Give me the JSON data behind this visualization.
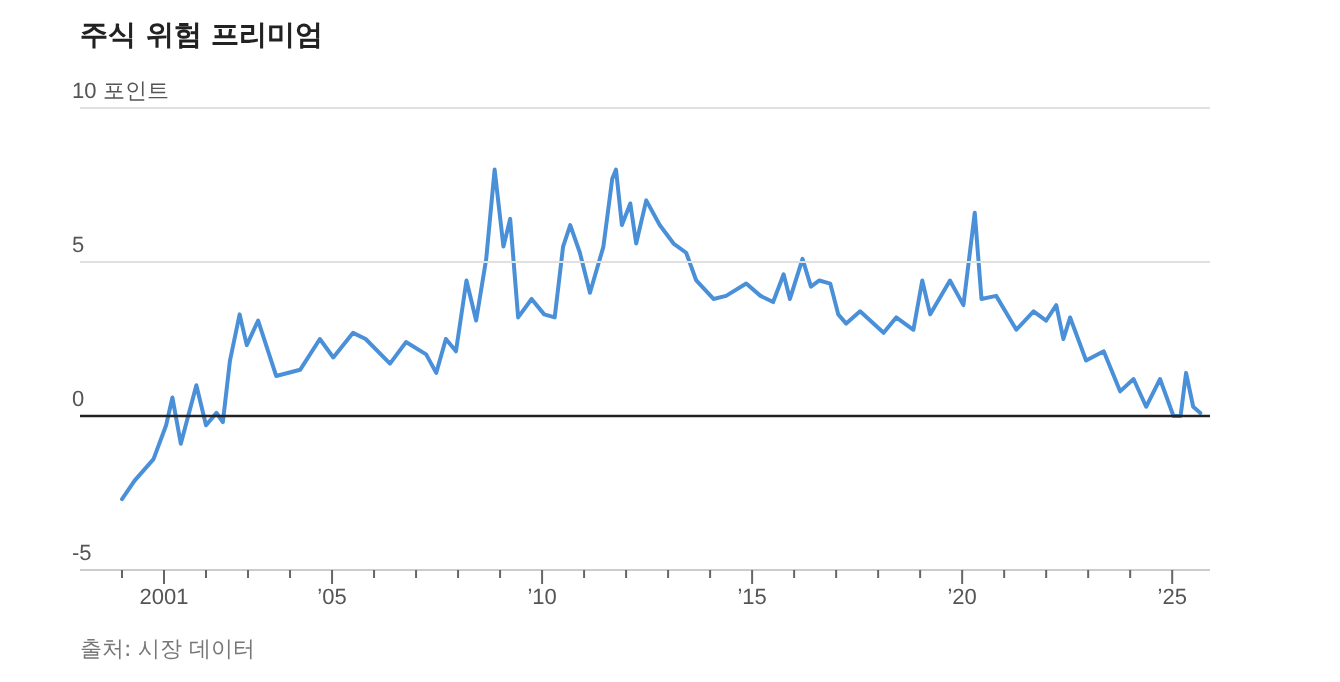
{
  "chart_data": {
    "type": "line",
    "title": "주식 위험 프리미엄",
    "annotations": [
      "출처: 시장 데이터"
    ],
    "x": [
      2000.0,
      2000.3,
      2000.75,
      2001.05,
      2001.2,
      2001.4,
      2001.77,
      2002.0,
      2002.25,
      2002.4,
      2002.57,
      2002.8,
      2002.97,
      2003.24,
      2003.67,
      2004.24,
      2004.71,
      2005.03,
      2005.5,
      2005.8,
      2006.38,
      2006.76,
      2007.24,
      2007.48,
      2007.71,
      2007.95,
      2008.2,
      2008.43,
      2008.67,
      2008.87,
      2009.08,
      2009.24,
      2009.43,
      2009.75,
      2010.05,
      2010.3,
      2010.5,
      2010.67,
      2010.9,
      2011.14,
      2011.46,
      2011.67,
      2011.76,
      2011.9,
      2012.1,
      2012.24,
      2012.48,
      2012.8,
      2013.13,
      2013.43,
      2013.67,
      2014.08,
      2014.38,
      2014.86,
      2015.2,
      2015.5,
      2015.75,
      2015.9,
      2016.2,
      2016.4,
      2016.6,
      2016.86,
      2017.05,
      2017.24,
      2017.57,
      2018.13,
      2018.43,
      2018.84,
      2019.05,
      2019.24,
      2019.71,
      2020.03,
      2020.3,
      2020.46,
      2020.81,
      2021.29,
      2021.7,
      2022.0,
      2022.24,
      2022.41,
      2022.57,
      2022.95,
      2023.37,
      2023.76,
      2024.08,
      2024.38,
      2024.71,
      2025.03,
      2025.2,
      2025.33,
      2025.5,
      2025.67
    ],
    "series": [
      {
        "color": "#4a90d9",
        "values": [
          -2.7,
          -2.1,
          -1.4,
          -0.3,
          0.6,
          -0.9,
          1.0,
          -0.3,
          0.1,
          -0.2,
          1.8,
          3.3,
          2.3,
          3.1,
          1.3,
          1.5,
          2.5,
          1.9,
          2.7,
          2.5,
          1.7,
          2.4,
          2.0,
          1.4,
          2.5,
          2.1,
          4.4,
          3.1,
          5.1,
          8.0,
          5.5,
          6.4,
          3.2,
          3.8,
          3.3,
          3.2,
          5.5,
          6.2,
          5.3,
          4.0,
          5.5,
          7.7,
          8.0,
          6.2,
          6.9,
          5.6,
          7.0,
          6.2,
          5.6,
          5.3,
          4.4,
          3.8,
          3.9,
          4.3,
          3.9,
          3.7,
          4.6,
          3.8,
          5.1,
          4.2,
          4.4,
          4.3,
          3.3,
          3.0,
          3.4,
          2.7,
          3.2,
          2.8,
          4.4,
          3.3,
          4.4,
          3.6,
          6.6,
          3.8,
          3.9,
          2.8,
          3.4,
          3.1,
          3.6,
          2.5,
          3.2,
          1.8,
          2.1,
          0.8,
          1.2,
          0.3,
          1.2,
          0.0,
          0.0,
          1.4,
          0.3,
          0.1
        ]
      }
    ],
    "xlim": [
      1999.0,
      2025.9
    ],
    "xticks": [
      {
        "value": 2000,
        "label": null
      },
      {
        "value": 2001,
        "label": "2001"
      },
      {
        "value": 2002,
        "label": null
      },
      {
        "value": 2003,
        "label": null
      },
      {
        "value": 2004,
        "label": null
      },
      {
        "value": 2005,
        "label": "’05"
      },
      {
        "value": 2006,
        "label": null
      },
      {
        "value": 2007,
        "label": null
      },
      {
        "value": 2008,
        "label": null
      },
      {
        "value": 2009,
        "label": null
      },
      {
        "value": 2010,
        "label": "’10"
      },
      {
        "value": 2011,
        "label": null
      },
      {
        "value": 2012,
        "label": null
      },
      {
        "value": 2013,
        "label": null
      },
      {
        "value": 2014,
        "label": null
      },
      {
        "value": 2015,
        "label": "’15"
      },
      {
        "value": 2016,
        "label": null
      },
      {
        "value": 2017,
        "label": null
      },
      {
        "value": 2018,
        "label": null
      },
      {
        "value": 2019,
        "label": null
      },
      {
        "value": 2020,
        "label": "’20"
      },
      {
        "value": 2021,
        "label": null
      },
      {
        "value": 2022,
        "label": null
      },
      {
        "value": 2023,
        "label": null
      },
      {
        "value": 2024,
        "label": null
      },
      {
        "value": 2025,
        "label": "’25"
      }
    ],
    "ylim": [
      -5,
      10
    ],
    "yticks": [
      -5,
      0,
      5,
      {
        "value": 10,
        "label": "10 포인트"
      }
    ],
    "ref_lines": [
      {
        "axis": "y",
        "value": 10,
        "color": "#e0e0e0"
      },
      {
        "axis": "y",
        "value": 5,
        "color": "#e0e0e0"
      },
      {
        "axis": "y",
        "value": 0,
        "color": "#222222"
      }
    ],
    "line_style": "solid"
  }
}
